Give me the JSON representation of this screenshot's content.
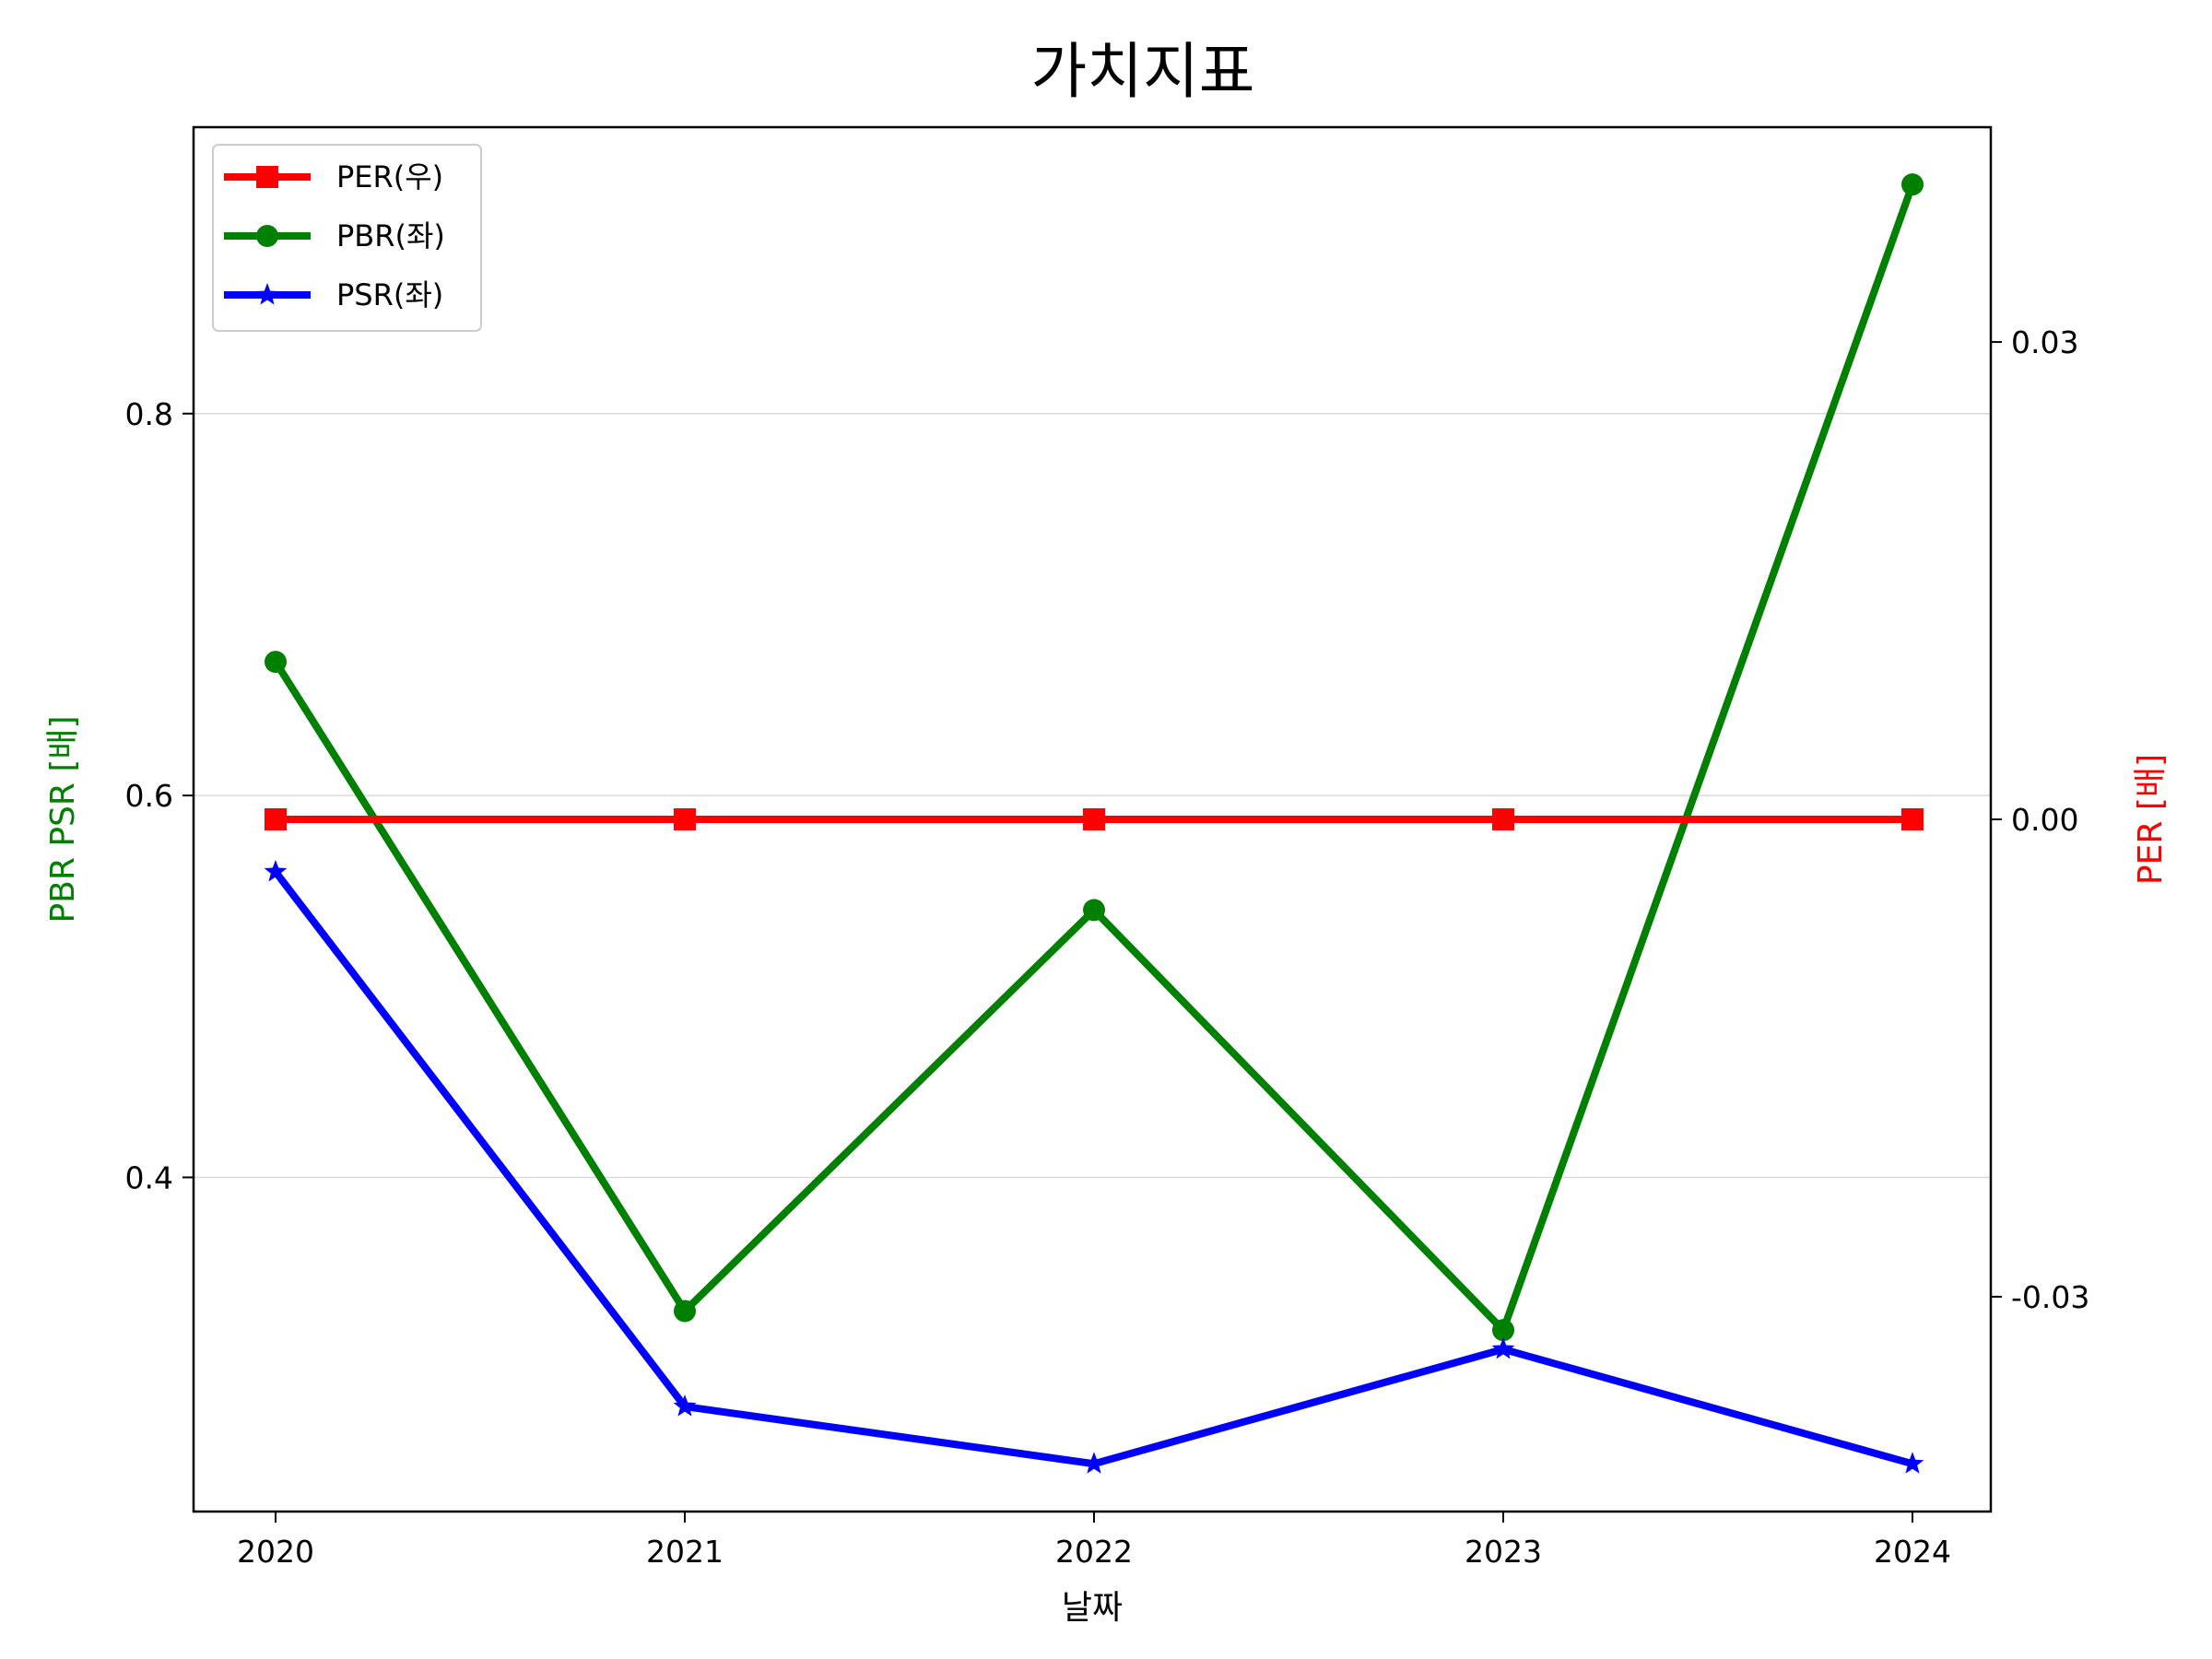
{
  "chart_data": {
    "type": "line",
    "title": "가치지표",
    "xlabel": "날짜",
    "ylabel_left": "PBR PSR [배]",
    "ylabel_right": "PER [배]",
    "categories": [
      "2020",
      "2021",
      "2022",
      "2023",
      "2024"
    ],
    "left_axis": {
      "ylim": [
        0.225,
        0.95
      ],
      "ticks": [
        0.4,
        0.6,
        0.8
      ],
      "tick_labels": [
        "0.4",
        "0.6",
        "0.8"
      ],
      "grid": true
    },
    "right_axis": {
      "ylim": [
        -0.0435,
        0.0435
      ],
      "ticks": [
        -0.03,
        0.0,
        0.03
      ],
      "tick_labels": [
        "-0.03",
        "0.00",
        "0.03"
      ],
      "grid": false
    },
    "series": [
      {
        "name": "PER(우)",
        "axis": "right",
        "values": [
          0,
          0,
          0,
          0,
          0
        ],
        "color": "#ff0000",
        "marker": "square"
      },
      {
        "name": "PBR(좌)",
        "axis": "left",
        "values": [
          0.67,
          0.33,
          0.54,
          0.32,
          0.92
        ],
        "color": "#008000",
        "marker": "circle"
      },
      {
        "name": "PSR(좌)",
        "axis": "left",
        "values": [
          0.56,
          0.28,
          0.25,
          0.31,
          0.25
        ],
        "color": "#0000ff",
        "marker": "star"
      }
    ],
    "legend_position": "top-left",
    "colors": {
      "left_axis_label": "#008000",
      "right_axis_label": "#ff0000"
    }
  }
}
